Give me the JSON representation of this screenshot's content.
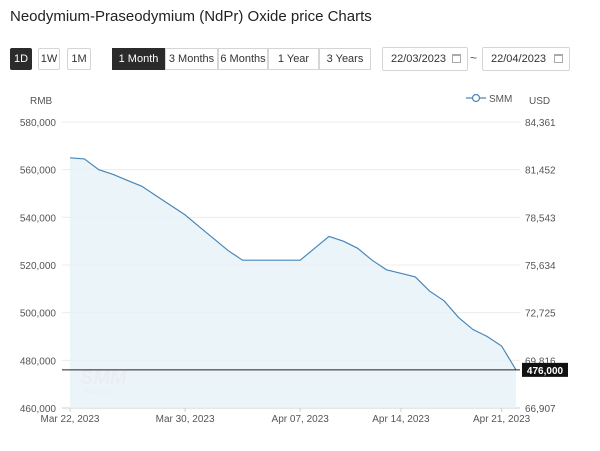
{
  "page": {
    "title": "Neodymium-Praseodymium (NdPr) Oxide price Charts"
  },
  "quick_buttons": [
    "1D",
    "1W",
    "1M"
  ],
  "quick_active": "1D",
  "range_buttons": [
    "1 Month",
    "3 Months",
    "6 Months",
    "1 Year",
    "3 Years"
  ],
  "range_active": "1 Month",
  "date_range": {
    "start": "22/03/2023",
    "separator": "~",
    "end": "22/04/2023"
  },
  "colors": {
    "line": "#4a86b8",
    "fill": "#e8f2f8",
    "active_bg": "#2b2b2b",
    "last_price_bg": "#111111"
  },
  "chart_data": {
    "type": "area",
    "title": "Neodymium-Praseodymium (NdPr) Oxide price Charts",
    "series": [
      {
        "name": "SMM",
        "x": [
          "2023-03-22",
          "2023-03-23",
          "2023-03-24",
          "2023-03-25",
          "2023-03-26",
          "2023-03-27",
          "2023-03-28",
          "2023-03-29",
          "2023-03-30",
          "2023-03-31",
          "2023-04-01",
          "2023-04-02",
          "2023-04-03",
          "2023-04-04",
          "2023-04-05",
          "2023-04-06",
          "2023-04-07",
          "2023-04-08",
          "2023-04-09",
          "2023-04-10",
          "2023-04-11",
          "2023-04-12",
          "2023-04-13",
          "2023-04-14",
          "2023-04-15",
          "2023-04-16",
          "2023-04-17",
          "2023-04-18",
          "2023-04-19",
          "2023-04-20",
          "2023-04-21",
          "2023-04-22"
        ],
        "values": [
          565000,
          564500,
          560000,
          558000,
          555500,
          553000,
          549000,
          545000,
          541000,
          536000,
          531000,
          526000,
          522000,
          522000,
          522000,
          522000,
          522000,
          527000,
          532000,
          530000,
          527000,
          522000,
          518000,
          516500,
          515000,
          509000,
          505000,
          498000,
          493000,
          490000,
          486000,
          476000
        ]
      }
    ],
    "legend": {
      "label": "SMM",
      "position": "top-right"
    },
    "y_left": {
      "label": "RMB",
      "ticks": [
        "580,000",
        "560,000",
        "540,000",
        "520,000",
        "500,000",
        "480,000",
        "460,000"
      ],
      "range": [
        460000,
        580000
      ]
    },
    "y_right": {
      "label": "USD",
      "ticks": [
        "84,361",
        "81,452",
        "78,543",
        "75,634",
        "72,725",
        "69,816",
        "66,907"
      ]
    },
    "x_ticks": [
      "Mar 22, 2023",
      "Mar 30, 2023",
      "Apr 07, 2023",
      "Apr 14, 2023",
      "Apr 21, 2023"
    ],
    "last_price_label": "476,000",
    "watermark": {
      "main": "SMM",
      "sub": "SMM.CN"
    }
  }
}
